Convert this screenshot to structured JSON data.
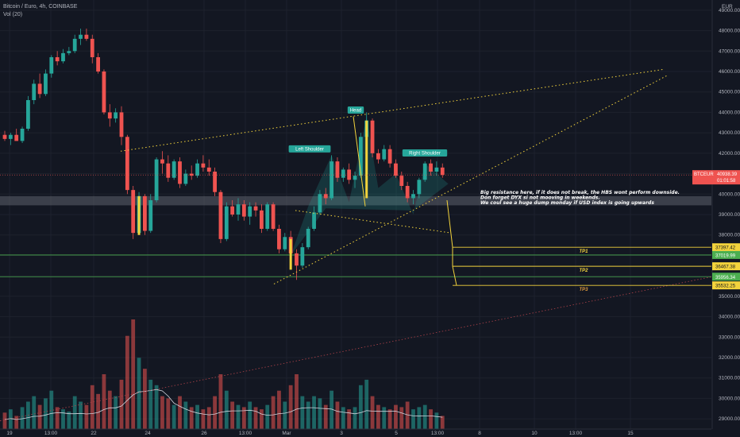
{
  "header": {
    "title": "Bitcoin / Euro, 4h, COINBASE",
    "indicator": "Vol (20)"
  },
  "currency_label": "EUR",
  "colors": {
    "bg": "#131722",
    "up": "#26a69a",
    "down": "#ef5350",
    "yellow": "#f3d33c",
    "green_line": "#4caf50",
    "axis_text": "#b2b5be",
    "grid": "#1e222d",
    "price_tag": "#ef5350",
    "red_trend": "#b2434a"
  },
  "chart_data": {
    "type": "candlestick",
    "title": "Bitcoin / Euro, 4h, COINBASE",
    "y_axis": {
      "range": [
        28500,
        49500
      ],
      "ticks": [
        "49000.00",
        "48000.00",
        "47000.00",
        "46000.00",
        "45000.00",
        "44000.00",
        "43000.00",
        "42000.00",
        "41000.00",
        "40000.00",
        "39000.00",
        "38000.00",
        "37000.00",
        "36000.00",
        "35000.00",
        "34000.00",
        "33000.00",
        "32000.00",
        "31000.00",
        "30000.00",
        "29000.00"
      ]
    },
    "x_axis": {
      "labels": [
        "19",
        "13:00",
        "22",
        "24",
        "26",
        "13:00",
        "Mar",
        "3",
        "5",
        "13:00",
        "8",
        "10",
        "13:00",
        "15"
      ]
    },
    "candles": [
      [
        42900,
        43100,
        42600,
        42700
      ],
      [
        42700,
        43000,
        42400,
        42900
      ],
      [
        42900,
        43200,
        42700,
        42600
      ],
      [
        42600,
        43300,
        42500,
        43200
      ],
      [
        43200,
        44800,
        43100,
        44600
      ],
      [
        44600,
        45600,
        44400,
        45400
      ],
      [
        45400,
        45900,
        44700,
        44900
      ],
      [
        44900,
        46100,
        44800,
        45900
      ],
      [
        45900,
        46800,
        45700,
        46700
      ],
      [
        46700,
        47000,
        46300,
        46500
      ],
      [
        46500,
        47100,
        46400,
        46900
      ],
      [
        46900,
        47200,
        46800,
        47000
      ],
      [
        47000,
        47800,
        46900,
        47600
      ],
      [
        47600,
        48100,
        47300,
        47800
      ],
      [
        47800,
        48100,
        47500,
        47600
      ],
      [
        47600,
        47800,
        46400,
        46700
      ],
      [
        46700,
        46900,
        45900,
        46000
      ],
      [
        46000,
        46100,
        43900,
        44000
      ],
      [
        44000,
        44400,
        43300,
        43700
      ],
      [
        43700,
        44200,
        43500,
        44000
      ],
      [
        44000,
        44300,
        42400,
        42800
      ],
      [
        42800,
        42900,
        40000,
        40200
      ],
      [
        40200,
        40400,
        37800,
        38100
      ],
      [
        38100,
        40100,
        38000,
        39900
      ],
      [
        39900,
        40000,
        38000,
        38200
      ],
      [
        38200,
        40000,
        38100,
        39700
      ],
      [
        39700,
        41800,
        39600,
        41700
      ],
      [
        41700,
        42100,
        41000,
        41500
      ],
      [
        41500,
        41900,
        40600,
        40800
      ],
      [
        40800,
        41700,
        40700,
        41600
      ],
      [
        41600,
        41800,
        40300,
        40500
      ],
      [
        40500,
        41200,
        40400,
        41000
      ],
      [
        41000,
        41400,
        40700,
        40900
      ],
      [
        40900,
        41700,
        40800,
        41500
      ],
      [
        41500,
        41900,
        41100,
        41300
      ],
      [
        41300,
        41700,
        40900,
        41100
      ],
      [
        41100,
        41300,
        39900,
        40100
      ],
      [
        40100,
        40200,
        37600,
        37800
      ],
      [
        37800,
        39600,
        37700,
        39400
      ],
      [
        39400,
        39700,
        38900,
        39000
      ],
      [
        39000,
        39800,
        38700,
        39500
      ],
      [
        39500,
        39700,
        38700,
        38900
      ],
      [
        38900,
        39600,
        38500,
        39400
      ],
      [
        39400,
        39600,
        38900,
        39200
      ],
      [
        39200,
        39500,
        38100,
        38300
      ],
      [
        38300,
        39600,
        38200,
        39500
      ],
      [
        39500,
        39600,
        38200,
        38300
      ],
      [
        38300,
        38500,
        37100,
        37300
      ],
      [
        37300,
        38100,
        37200,
        37900
      ],
      [
        37900,
        38200,
        36700,
        37100
      ],
      [
        37100,
        37300,
        35800,
        36500
      ],
      [
        36500,
        37600,
        36400,
        37400
      ],
      [
        37400,
        38400,
        37300,
        38300
      ],
      [
        38300,
        39400,
        38200,
        39100
      ],
      [
        39100,
        40200,
        39000,
        40000
      ],
      [
        40000,
        40300,
        39500,
        39800
      ],
      [
        39800,
        41900,
        39700,
        41600
      ],
      [
        41600,
        41800,
        40600,
        40800
      ],
      [
        40800,
        41300,
        40600,
        41200
      ],
      [
        41200,
        41500,
        40500,
        40700
      ],
      [
        40700,
        41100,
        40300,
        40900
      ],
      [
        40900,
        43000,
        40800,
        42800
      ],
      [
        42800,
        44000,
        42700,
        43600
      ],
      [
        43600,
        43700,
        41800,
        42000
      ],
      [
        42000,
        42200,
        41500,
        41700
      ],
      [
        41700,
        42400,
        41600,
        42200
      ],
      [
        42200,
        42400,
        41300,
        41500
      ],
      [
        41500,
        41700,
        40800,
        40900
      ],
      [
        40900,
        41100,
        40200,
        40400
      ],
      [
        40400,
        40600,
        39600,
        39800
      ],
      [
        39800,
        40200,
        39500,
        40000
      ],
      [
        40000,
        40800,
        39800,
        40700
      ],
      [
        40700,
        41600,
        40600,
        41500
      ],
      [
        41500,
        41700,
        40900,
        41100
      ],
      [
        41100,
        41600,
        40900,
        41300
      ],
      [
        41300,
        41500,
        40800,
        40939
      ]
    ],
    "volume_norm": [
      0.15,
      0.18,
      0.12,
      0.2,
      0.25,
      0.3,
      0.22,
      0.28,
      0.35,
      0.2,
      0.18,
      0.16,
      0.3,
      0.25,
      0.22,
      0.4,
      0.32,
      0.5,
      0.35,
      0.3,
      0.45,
      0.85,
      1.0,
      0.65,
      0.55,
      0.45,
      0.4,
      0.3,
      0.28,
      0.22,
      0.3,
      0.25,
      0.2,
      0.22,
      0.18,
      0.2,
      0.3,
      0.5,
      0.35,
      0.25,
      0.22,
      0.2,
      0.25,
      0.2,
      0.18,
      0.22,
      0.3,
      0.35,
      0.25,
      0.4,
      0.5,
      0.3,
      0.25,
      0.3,
      0.28,
      0.22,
      0.35,
      0.25,
      0.2,
      0.18,
      0.2,
      0.4,
      0.45,
      0.3,
      0.22,
      0.2,
      0.18,
      0.22,
      0.2,
      0.25,
      0.18,
      0.2,
      0.22,
      0.18,
      0.15,
      0.12
    ],
    "annotations": {
      "patterns": [
        "Left Shoulder",
        "Head",
        "Right Shoulder"
      ],
      "note_lines": [
        "Big resistance here, if it does not break, the HBS wont perform downside.",
        "Don forget DYX si not mooving in weekends.",
        "We coul see a huge dump monday if USD index is going upwards"
      ],
      "targets": [
        {
          "label": "TP1",
          "price_label": "37397.42"
        },
        {
          "label": "TP2",
          "price_label": "36467.38"
        },
        {
          "label": "TP3",
          "price_label": "35532.25"
        }
      ],
      "support_levels": [
        "37019.99",
        "35956.34"
      ],
      "current_price": {
        "symbol": "BTCEUR",
        "value": "40938.39",
        "countdown": "01:01:58"
      }
    }
  }
}
